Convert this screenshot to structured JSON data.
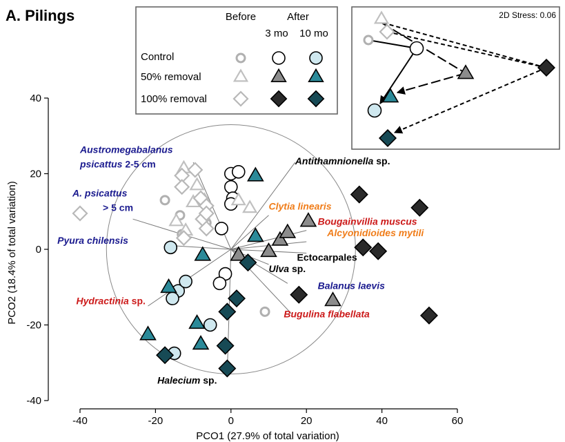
{
  "panel_label": "A. Pilings",
  "colors": {
    "control_before": "#b0b0b0",
    "removal50_before": "#c0c0c0",
    "removal100_before": "#b8b8b8",
    "control_after3": "#ffffff",
    "control_after10": "#cfe8ef",
    "removal50_after3": "#8c8c8c",
    "removal50_after10": "#2b8a99",
    "removal100_after3": "#2a2a2a",
    "removal100_after10": "#174a55",
    "vector_line": "#777777",
    "species_blue": "#1b1b8f",
    "species_red": "#cc1a1a",
    "species_orange": "#f07d1a",
    "species_black": "#000000"
  },
  "legend": {
    "col_before": "Before",
    "col_after": "After",
    "col_3mo": "3 mo",
    "col_10mo": "10 mo",
    "rows": [
      {
        "label": "Control",
        "shape": "circle"
      },
      {
        "label": "50% removal",
        "shape": "triangle"
      },
      {
        "label": "100% removal",
        "shape": "diamond"
      }
    ]
  },
  "inset": {
    "stress_label": "2D Stress: 0.06"
  },
  "chart_data": {
    "type": "scatter",
    "xlabel": "PCO1 (27.9% of total variation)",
    "ylabel": "PCO2 (18.4% of total variation)",
    "xlim": [
      -40,
      60
    ],
    "ylim": [
      -40,
      40
    ],
    "xticks": [
      "-40",
      "-20",
      "0",
      "20",
      "40",
      "60"
    ],
    "yticks": [
      "40",
      "20",
      "0",
      "-20",
      "-40"
    ],
    "correlation_circle_radius": 33,
    "series": [
      {
        "group": "control",
        "time": "before",
        "points": [
          [
            -17.5,
            13
          ],
          [
            -13.5,
            9
          ],
          [
            -13,
            4
          ],
          [
            -6.5,
            7
          ],
          [
            9,
            -16.5
          ]
        ]
      },
      {
        "group": "control",
        "time": "3mo",
        "points": [
          [
            0,
            20
          ],
          [
            2,
            20.5
          ],
          [
            0,
            16.5
          ],
          [
            0.5,
            13.5
          ],
          [
            0,
            12
          ],
          [
            -2.5,
            5.5
          ],
          [
            -1.5,
            -6.5
          ],
          [
            -3,
            -9
          ]
        ]
      },
      {
        "group": "control",
        "time": "10mo",
        "points": [
          [
            -16,
            0.5
          ],
          [
            -14,
            -11
          ],
          [
            -12,
            -8.5
          ],
          [
            -15.5,
            -13
          ],
          [
            -5.5,
            -20
          ],
          [
            -15,
            -27.5
          ]
        ]
      },
      {
        "group": "50",
        "time": "before",
        "points": [
          [
            -12.5,
            21.5
          ],
          [
            -9,
            17
          ],
          [
            -7,
            13
          ],
          [
            -10,
            12.5
          ],
          [
            -14.5,
            7.5
          ],
          [
            -12,
            5
          ],
          [
            2,
            13
          ],
          [
            5,
            11
          ]
        ]
      },
      {
        "group": "50",
        "time": "3mo",
        "points": [
          [
            2,
            -1.5
          ],
          [
            10,
            -0.5
          ],
          [
            13,
            2.5
          ],
          [
            15,
            4.5
          ],
          [
            20.5,
            7.5
          ],
          [
            27,
            -13.5
          ]
        ]
      },
      {
        "group": "50",
        "time": "10mo",
        "points": [
          [
            6.5,
            19.5
          ],
          [
            6.5,
            3.5
          ],
          [
            -7.5,
            -1.5
          ],
          [
            -16.5,
            -10
          ],
          [
            -22,
            -22.5
          ],
          [
            -8,
            -25
          ],
          [
            -9,
            -19.5
          ]
        ]
      },
      {
        "group": "100",
        "time": "before",
        "points": [
          [
            -40,
            9.5
          ],
          [
            -13,
            19.5
          ],
          [
            -9.5,
            21
          ],
          [
            -13,
            16.5
          ],
          [
            -8,
            13.5
          ],
          [
            -6.5,
            11.5
          ],
          [
            -7.5,
            8
          ],
          [
            -6.5,
            9.5
          ],
          [
            -6.5,
            5.5
          ],
          [
            -12.5,
            3
          ]
        ]
      },
      {
        "group": "100",
        "time": "3mo",
        "points": [
          [
            34,
            14.5
          ],
          [
            50,
            11
          ],
          [
            35,
            0.5
          ],
          [
            39,
            -0.5
          ],
          [
            18,
            -12
          ],
          [
            52.5,
            -17.5
          ]
        ]
      },
      {
        "group": "100",
        "time": "10mo",
        "points": [
          [
            4.5,
            -3.5
          ],
          [
            1.5,
            -13
          ],
          [
            -1,
            -16.5
          ],
          [
            -1.5,
            -25.5
          ],
          [
            -17.5,
            -28
          ],
          [
            -1,
            -31.5
          ]
        ]
      }
    ],
    "vectors": [
      {
        "name": "Austromegabalanus psicattus 2-5 cm",
        "end": [
          -10,
          23
        ]
      },
      {
        "name": "A. psicattus > 5 cm",
        "end": [
          -26,
          8
        ]
      },
      {
        "name": "Pyura chilensis",
        "end": [
          -16,
          1
        ]
      },
      {
        "name": "Antithamnionella sp.",
        "end": [
          17,
          23
        ]
      },
      {
        "name": "Clytia linearis",
        "end": [
          10,
          9
        ]
      },
      {
        "name": "Bougainvillia muscus",
        "end": [
          20,
          5
        ]
      },
      {
        "name": "Alcyonidioides mytili",
        "end": [
          20,
          2
        ]
      },
      {
        "name": "Ectocarpales",
        "end": [
          20,
          -1
        ]
      },
      {
        "name": "Ulva sp.",
        "end": [
          10,
          -4
        ]
      },
      {
        "name": "Balanus laevis",
        "end": [
          15,
          -9
        ]
      },
      {
        "name": "Bugulina flabellata",
        "end": [
          16,
          -17
        ]
      },
      {
        "name": "Hydractinia sp.",
        "end": [
          -22,
          -15
        ]
      },
      {
        "name": "Halecium sp.",
        "end": [
          -1,
          -33
        ]
      }
    ],
    "species_labels": [
      {
        "lines": [
          {
            "parts": [
              {
                "t": "Austromegabalanus",
                "i": true
              }
            ]
          },
          {
            "parts": [
              {
                "t": "psicattus",
                "i": true
              },
              {
                "t": " 2-5 cm",
                "i": false
              }
            ]
          }
        ],
        "color": "blue",
        "anchor": "start",
        "at": [
          -40,
          25.5
        ]
      },
      {
        "lines": [
          {
            "parts": [
              {
                "t": "A. psicattus",
                "i": true
              }
            ]
          },
          {
            "parts": [
              {
                "t": "> 5 cm",
                "i": false
              }
            ]
          }
        ],
        "color": "blue",
        "anchor": "start",
        "at": [
          -42,
          14
        ]
      },
      {
        "lines": [
          {
            "parts": [
              {
                "t": "Pyura chilensis",
                "i": true
              }
            ]
          }
        ],
        "color": "blue",
        "anchor": "start",
        "at": [
          -46,
          1.5
        ]
      },
      {
        "lines": [
          {
            "parts": [
              {
                "t": "Antithamnionella",
                "i": true
              },
              {
                "t": " sp.",
                "i": false
              }
            ]
          }
        ],
        "color": "black",
        "anchor": "start",
        "at": [
          17,
          22.5
        ]
      },
      {
        "lines": [
          {
            "parts": [
              {
                "t": "Clytia linearis",
                "i": true
              }
            ]
          }
        ],
        "color": "orange",
        "anchor": "start",
        "at": [
          10,
          10.5
        ]
      },
      {
        "lines": [
          {
            "parts": [
              {
                "t": "Bougainvillia muscus",
                "i": true
              }
            ]
          }
        ],
        "color": "red",
        "anchor": "start",
        "at": [
          23,
          6.5
        ]
      },
      {
        "lines": [
          {
            "parts": [
              {
                "t": "Alcyonidioides mytili",
                "i": true
              }
            ]
          }
        ],
        "color": "orange",
        "anchor": "start",
        "at": [
          25.5,
          3.5
        ]
      },
      {
        "lines": [
          {
            "parts": [
              {
                "t": "Ectocarpales",
                "i": false
              }
            ]
          }
        ],
        "color": "black",
        "anchor": "start",
        "at": [
          17.5,
          -3
        ]
      },
      {
        "lines": [
          {
            "parts": [
              {
                "t": "Ulva",
                "i": true
              },
              {
                "t": " sp.",
                "i": false
              }
            ]
          }
        ],
        "color": "black",
        "anchor": "start",
        "at": [
          10,
          -6
        ]
      },
      {
        "lines": [
          {
            "parts": [
              {
                "t": "Balanus laevis",
                "i": true
              }
            ]
          }
        ],
        "color": "blue",
        "anchor": "start",
        "at": [
          23,
          -10.5
        ]
      },
      {
        "lines": [
          {
            "parts": [
              {
                "t": "Bugulina flabellata",
                "i": true
              }
            ]
          }
        ],
        "color": "red",
        "anchor": "start",
        "at": [
          14,
          -18
        ]
      },
      {
        "lines": [
          {
            "parts": [
              {
                "t": "Hydractinia",
                "i": true
              },
              {
                "t": " sp.",
                "i": false
              }
            ]
          }
        ],
        "color": "red",
        "anchor": "start",
        "at": [
          -41,
          -14.5
        ]
      },
      {
        "lines": [
          {
            "parts": [
              {
                "t": "Halecium",
                "i": true
              },
              {
                "t": " sp.",
                "i": false
              }
            ]
          }
        ],
        "color": "black",
        "anchor": "start",
        "at": [
          -19.5,
          -35.5
        ]
      }
    ]
  }
}
